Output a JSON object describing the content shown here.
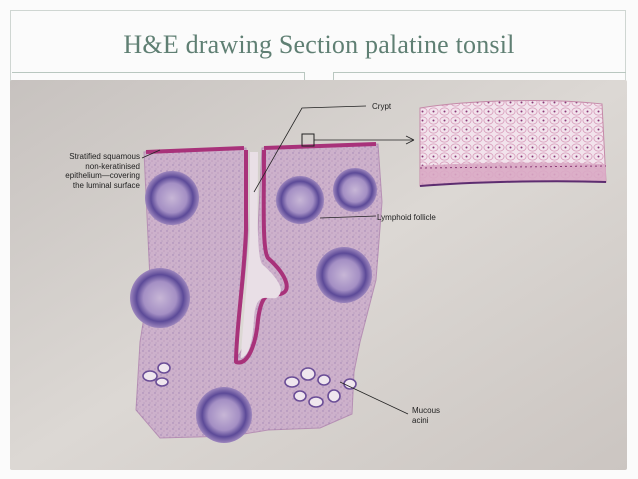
{
  "slide": {
    "title": "H&E drawing Section palatine tonsil"
  },
  "figure": {
    "labels": {
      "crypt": "Crypt",
      "epithelium_line1": "Stratified squamous",
      "epithelium_line2": "non-keratinised",
      "epithelium_line3": "epithelium—covering",
      "epithelium_line4": "the luminal surface",
      "lymphoid_follicle": "Lymphoid follicle",
      "mucous_line1": "Mucous",
      "mucous_line2": "acini"
    }
  },
  "colors": {
    "title": "#5f7f73",
    "paper": "#d8d3ce",
    "tissue": "#c9a9c6",
    "follicle": "#6d5aa3",
    "epithelium": "#b0407f"
  }
}
